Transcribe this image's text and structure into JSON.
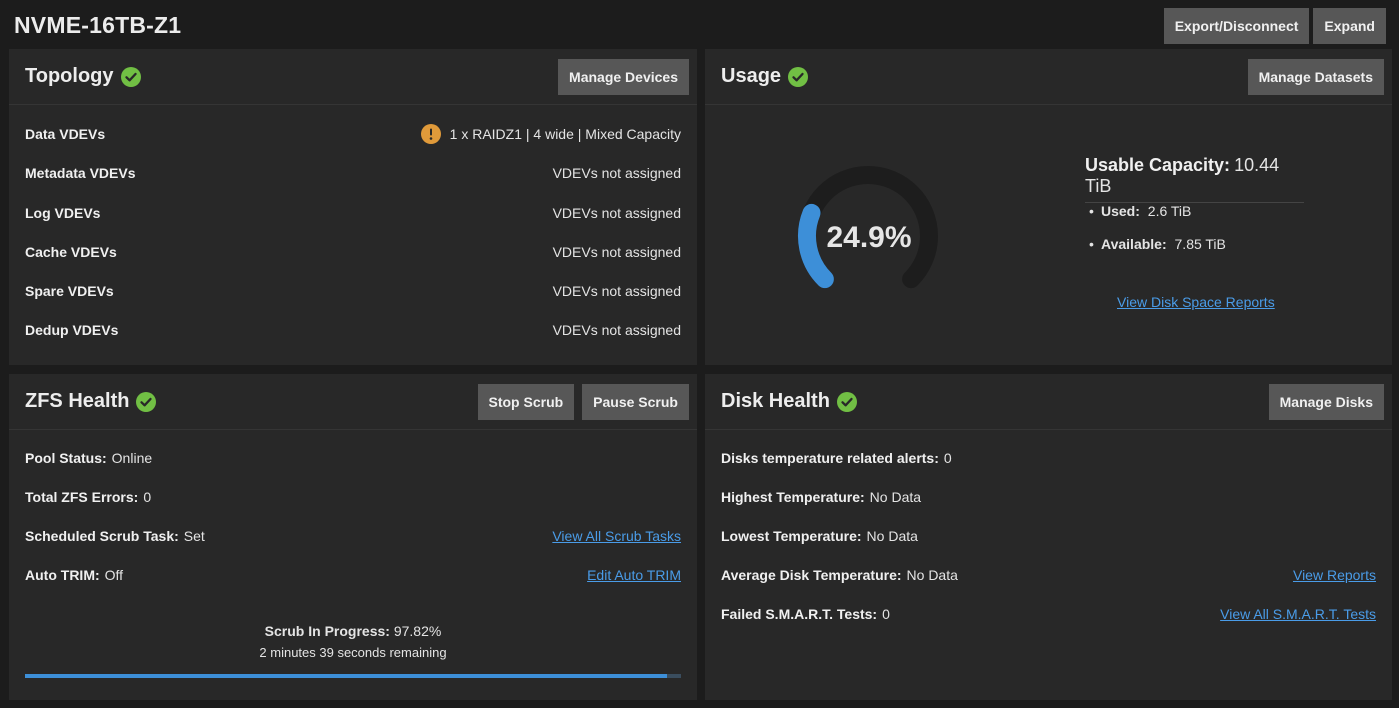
{
  "page": {
    "title": "NVME-16TB-Z1"
  },
  "header": {
    "export_label": "Export/Disconnect",
    "expand_label": "Expand"
  },
  "topology": {
    "title": "Topology",
    "status_icon": "check-circle-icon",
    "manage_label": "Manage Devices",
    "rows": [
      {
        "label": "Data VDEVs",
        "value": "1 x RAIDZ1 | 4 wide | Mixed Capacity",
        "icon": "warning-icon"
      },
      {
        "label": "Metadata VDEVs",
        "value": "VDEVs not assigned"
      },
      {
        "label": "Log VDEVs",
        "value": "VDEVs not assigned"
      },
      {
        "label": "Cache VDEVs",
        "value": "VDEVs not assigned"
      },
      {
        "label": "Spare VDEVs",
        "value": "VDEVs not assigned"
      },
      {
        "label": "Dedup VDEVs",
        "value": "VDEVs not assigned"
      }
    ]
  },
  "usage": {
    "title": "Usage",
    "status_icon": "check-circle-icon",
    "manage_label": "Manage Datasets",
    "percent_label": "24.9%",
    "percent": 24.9,
    "capacity_label": "Usable Capacity:",
    "capacity_value": "10.44 TiB",
    "used_label": "Used:",
    "used_value": "2.6 TiB",
    "available_label": "Available:",
    "available_value": "7.85 TiB",
    "reports_link": "View Disk Space Reports"
  },
  "zfs_health": {
    "title": "ZFS Health",
    "status_icon": "check-circle-icon",
    "stop_label": "Stop Scrub",
    "pause_label": "Pause Scrub",
    "pool_status_label": "Pool Status:",
    "pool_status_value": "Online",
    "errors_label": "Total ZFS Errors:",
    "errors_value": "0",
    "scrub_task_label": "Scheduled Scrub Task:",
    "scrub_task_value": "Set",
    "scrub_task_link": "View All Scrub Tasks",
    "trim_label": "Auto TRIM:",
    "trim_value": "Off",
    "trim_link": "Edit Auto TRIM",
    "scrub_progress_label": "Scrub In Progress:",
    "scrub_progress_value": "97.82%",
    "scrub_progress": 97.82,
    "scrub_remaining": "2 minutes 39 seconds remaining"
  },
  "disk_health": {
    "title": "Disk Health",
    "status_icon": "check-circle-icon",
    "manage_label": "Manage Disks",
    "temp_alerts_label": "Disks temperature related alerts:",
    "temp_alerts_value": "0",
    "highest_label": "Highest Temperature:",
    "highest_value": "No Data",
    "lowest_label": "Lowest Temperature:",
    "lowest_value": "No Data",
    "average_label": "Average Disk Temperature:",
    "average_value": "No Data",
    "reports_link": "View Reports",
    "smart_label": "Failed S.M.A.R.T. Tests:",
    "smart_value": "0",
    "smart_link": "View All S.M.A.R.T. Tests"
  },
  "colors": {
    "accent": "#3d8fd8",
    "ok": "#71bf44",
    "warning": "#e09a3a",
    "link": "#4a9ce8"
  }
}
